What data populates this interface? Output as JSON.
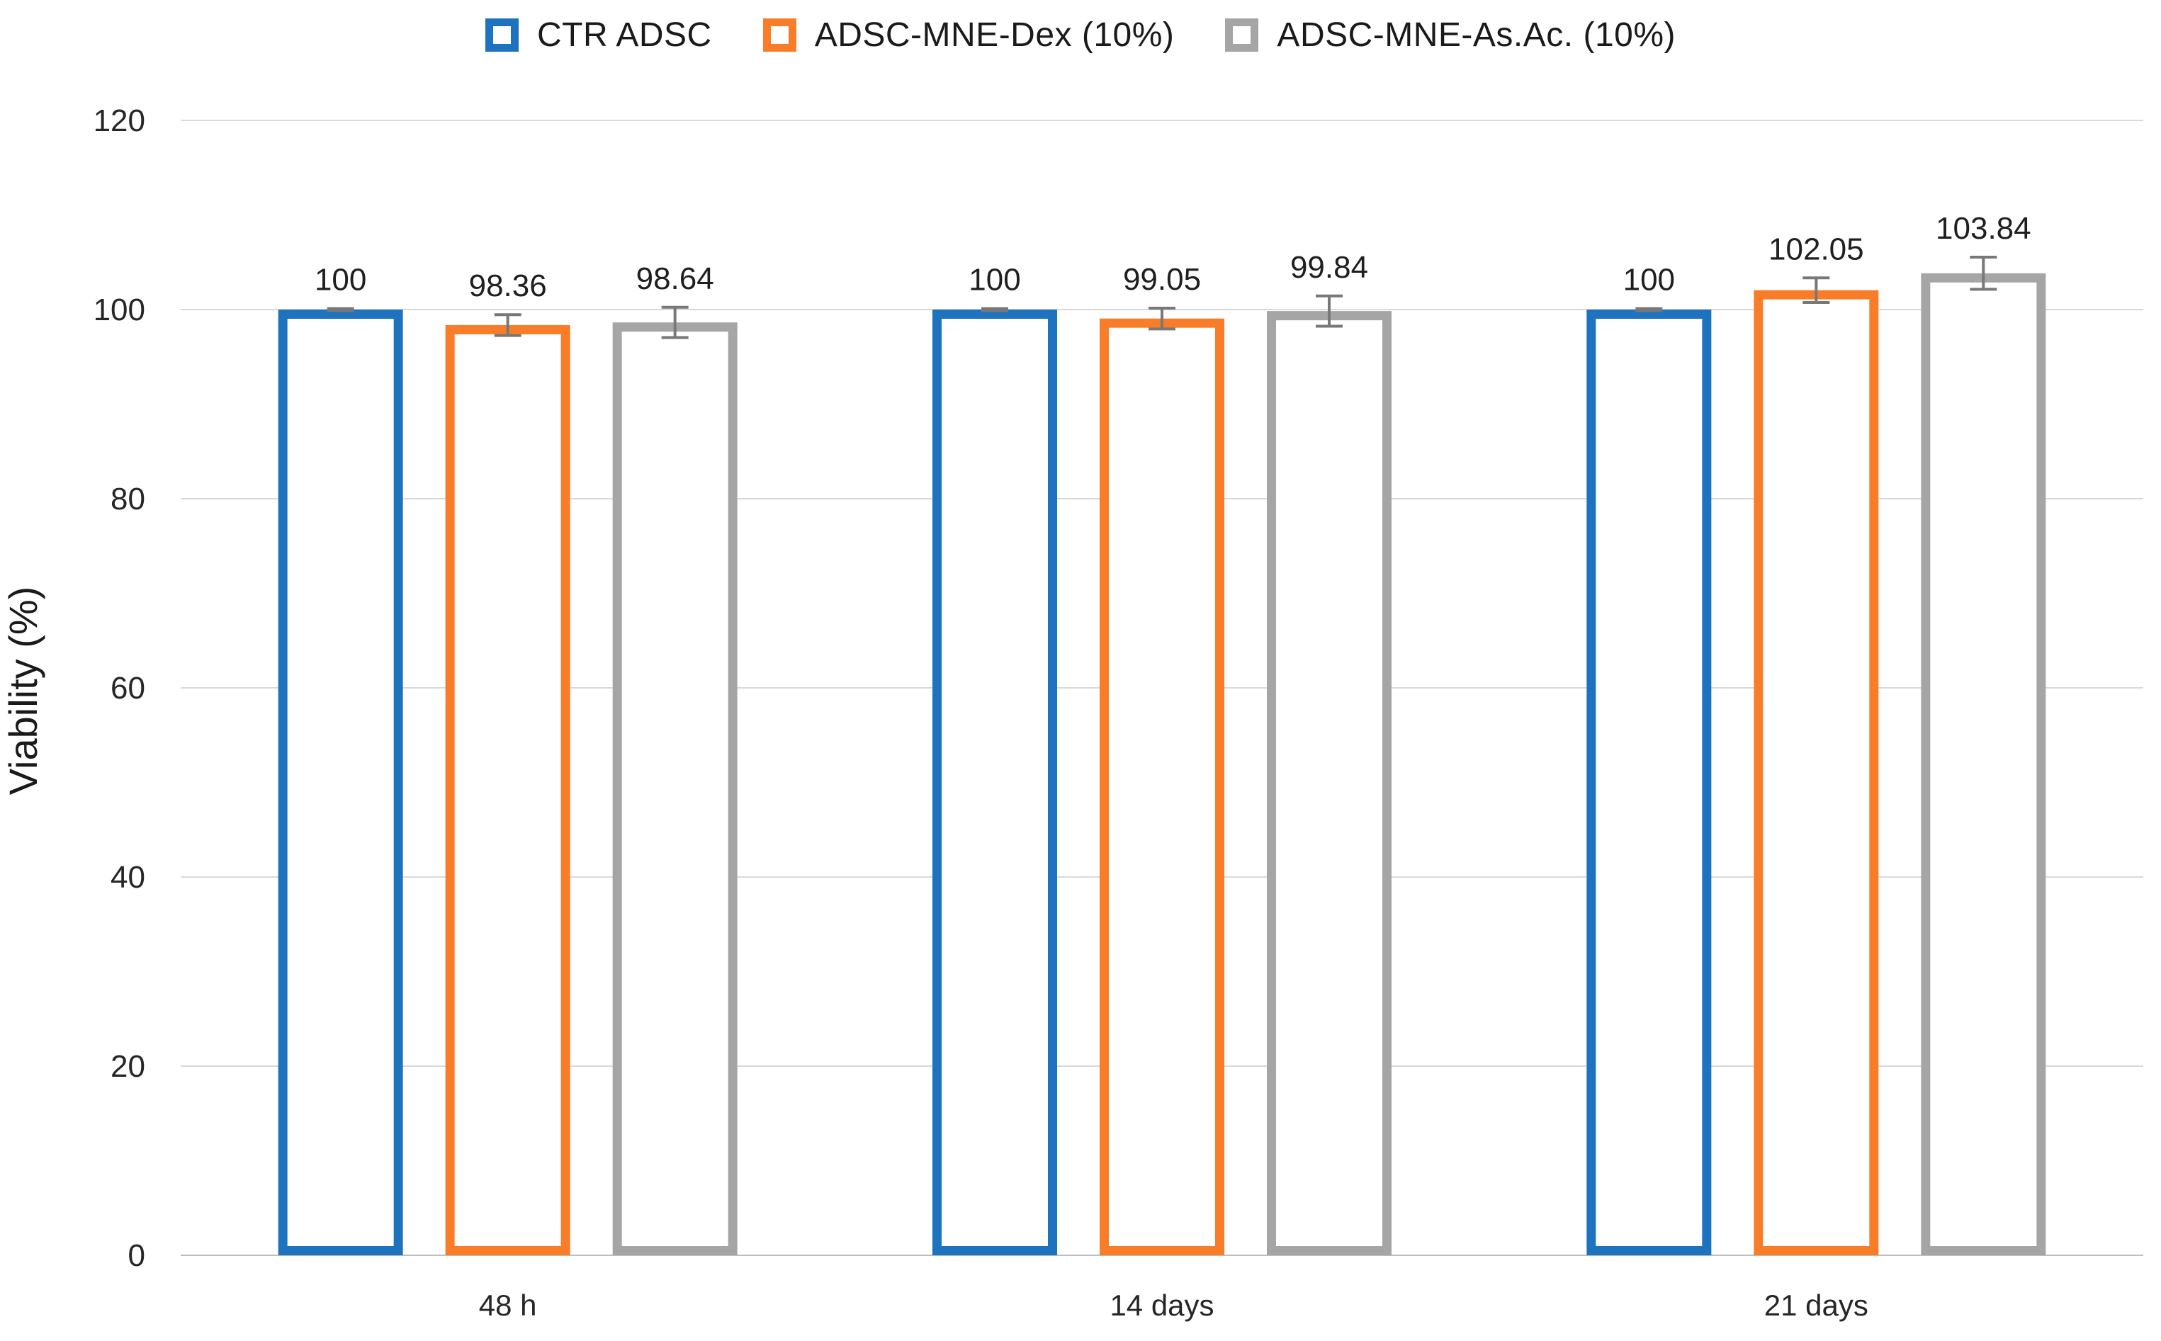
{
  "chart_data": {
    "type": "bar",
    "title": "",
    "ylabel": "Viability (%)",
    "xlabel": "",
    "categories": [
      "48 h",
      "14 days",
      "21 days"
    ],
    "series": [
      {
        "name": "CTR ADSC",
        "color": "#1E73BE",
        "values": [
          100,
          100,
          100
        ],
        "errors": [
          0.1,
          0.1,
          0.1
        ]
      },
      {
        "name": "ADSC-MNE-Dex (10%)",
        "color": "#F97D28",
        "values": [
          98.36,
          99.05,
          102.05
        ],
        "errors": [
          1.1,
          1.1,
          1.3
        ]
      },
      {
        "name": "ADSC-MNE-As.Ac. (10%)",
        "color": "#A5A5A5",
        "values": [
          98.64,
          99.84,
          103.84
        ],
        "errors": [
          1.6,
          1.6,
          1.7
        ]
      }
    ],
    "value_labels": [
      [
        "100",
        "98.36",
        "98.64"
      ],
      [
        "100",
        "99.05",
        "99.84"
      ],
      [
        "100",
        "102.05",
        "103.84"
      ]
    ],
    "ylim": [
      0,
      120
    ],
    "yticks": [
      "0",
      "20",
      "40",
      "60",
      "80",
      "100",
      "120"
    ],
    "grid": "horizontal",
    "legend_position": "top",
    "bar_style": "hollow",
    "colors": {
      "gridline": "#D9D9D9",
      "axis_line": "#BFBFBF",
      "error_bar": "#787878",
      "tick_text": "#262626",
      "value_text": "#1f1f1f"
    }
  }
}
